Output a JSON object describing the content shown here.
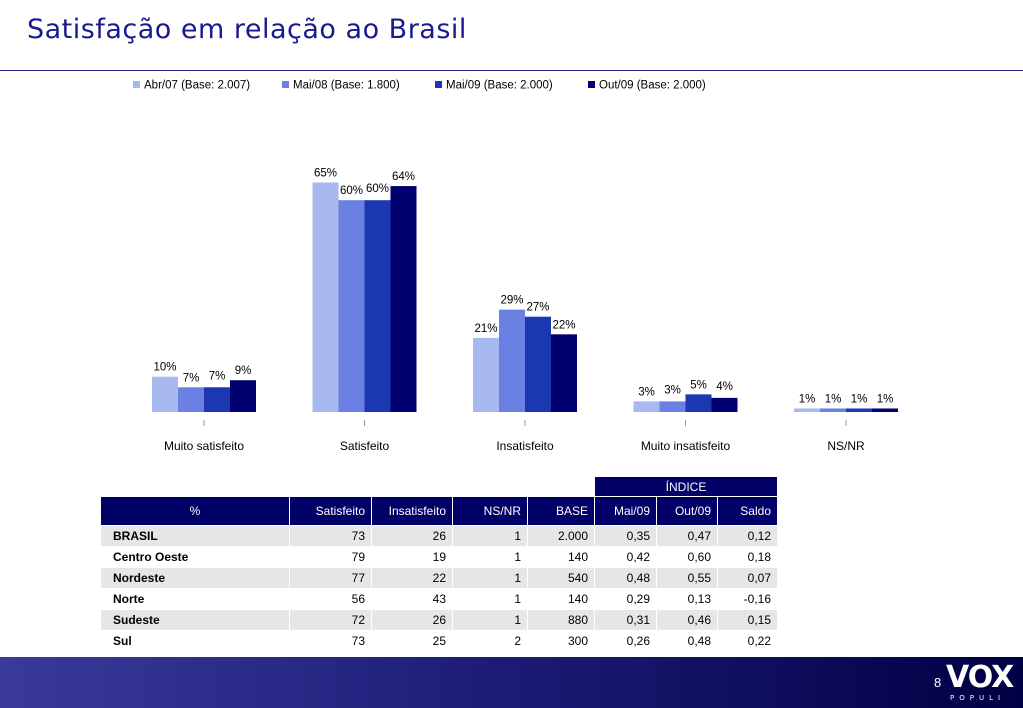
{
  "page": {
    "title": "Satisfação em relação ao Brasil",
    "page_number": "8",
    "logo_word": "VOX",
    "logo_sub": "POPULI"
  },
  "colors": {
    "series": [
      "#a7b9ee",
      "#6a80e2",
      "#1b38b2",
      "#000070"
    ],
    "header_bg": "#000066",
    "row_alt": "#e6e6e6",
    "title": "#1a1a8c"
  },
  "chart_data": {
    "type": "bar",
    "title": "",
    "xlabel": "",
    "ylabel": "",
    "ylim": [
      0,
      70
    ],
    "grid": false,
    "legend_position": "top",
    "categories": [
      "Muito satisfeito",
      "Satisfeito",
      "Insatisfeito",
      "Muito insatisfeito",
      "NS/NR"
    ],
    "series": [
      {
        "name": "Abr/07 (Base: 2.007)",
        "values": [
          10,
          65,
          21,
          3,
          1
        ]
      },
      {
        "name": "Mai/08 (Base: 1.800)",
        "values": [
          7,
          60,
          29,
          3,
          1
        ]
      },
      {
        "name": "Mai/09 (Base: 2.000)",
        "values": [
          7,
          60,
          27,
          5,
          1
        ]
      },
      {
        "name": "Out/09 (Base: 2.000)",
        "values": [
          9,
          64,
          22,
          4,
          1
        ]
      }
    ]
  },
  "table": {
    "group_header": "ÍNDICE",
    "headers": [
      "%",
      "Satisfeito",
      "Insatisfeito",
      "NS/NR",
      "BASE",
      "Mai/09",
      "Out/09",
      "Saldo"
    ],
    "rows": [
      [
        "BRASIL",
        "73",
        "26",
        "1",
        "2.000",
        "0,35",
        "0,47",
        "0,12"
      ],
      [
        "Centro Oeste",
        "79",
        "19",
        "1",
        "140",
        "0,42",
        "0,60",
        "0,18"
      ],
      [
        "Nordeste",
        "77",
        "22",
        "1",
        "540",
        "0,48",
        "0,55",
        "0,07"
      ],
      [
        "Norte",
        "56",
        "43",
        "1",
        "140",
        "0,29",
        "0,13",
        "-0,16"
      ],
      [
        "Sudeste",
        "72",
        "26",
        "1",
        "880",
        "0,31",
        "0,46",
        "0,15"
      ],
      [
        "Sul",
        "73",
        "25",
        "2",
        "300",
        "0,26",
        "0,48",
        "0,22"
      ]
    ]
  }
}
